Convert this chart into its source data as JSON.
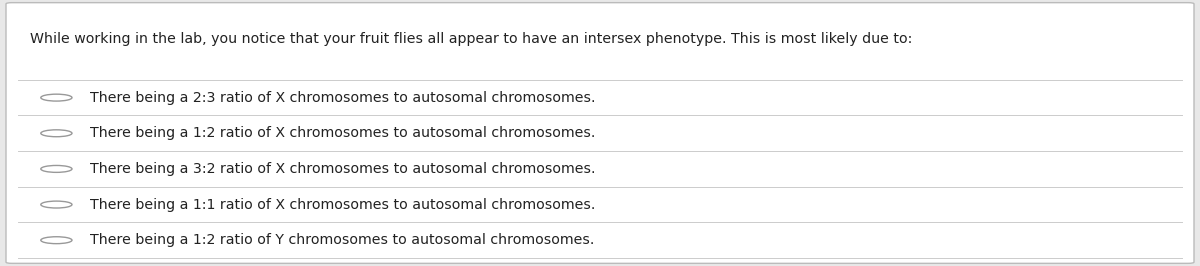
{
  "background_color": "#e8e8e8",
  "card_color": "#ffffff",
  "border_color": "#bbbbbb",
  "divider_color": "#cccccc",
  "text_color": "#222222",
  "circle_color": "#999999",
  "question": "While working in the lab, you notice that your fruit flies all appear to have an intersex phenotype. This is most likely due to:",
  "options": [
    "There being a 2:3 ratio of X chromosomes to autosomal chromosomes.",
    "There being a 1:2 ratio of X chromosomes to autosomal chromosomes.",
    "There being a 3:2 ratio of X chromosomes to autosomal chromosomes.",
    "There being a 1:1 ratio of X chromosomes to autosomal chromosomes.",
    "There being a 1:2 ratio of Y chromosomes to autosomal chromosomes."
  ],
  "question_fontsize": 10.2,
  "option_fontsize": 10.2,
  "figsize": [
    12.0,
    2.66
  ],
  "dpi": 100
}
